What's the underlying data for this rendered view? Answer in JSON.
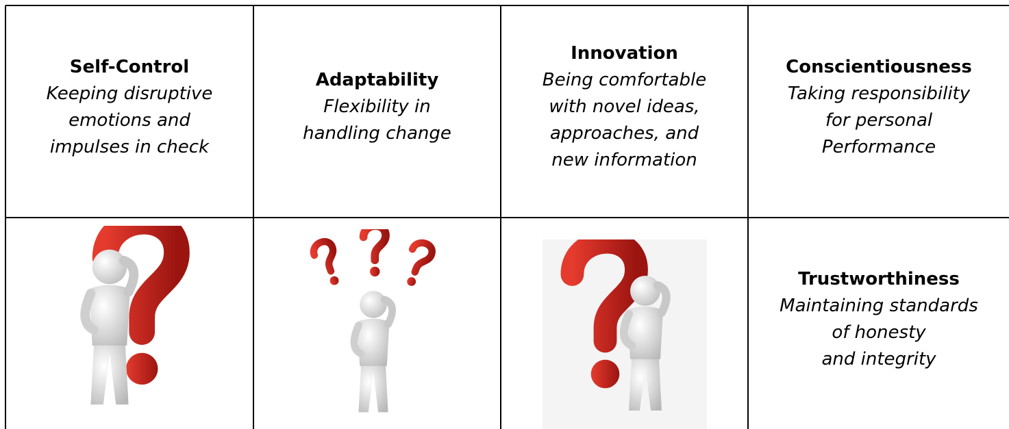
{
  "table": {
    "top_row": [
      {
        "title": "Self-Control",
        "description": [
          "Keeping disruptive",
          "emotions and",
          "impulses in check"
        ]
      },
      {
        "title": "Adaptability",
        "description": [
          "Flexibility in",
          "handling change"
        ]
      },
      {
        "title": "Innovation",
        "description": [
          "Being comfortable",
          "with novel ideas,",
          "approaches, and",
          "new information"
        ]
      },
      {
        "title": "Conscientiousness",
        "description": [
          "Taking responsibility",
          "for personal",
          "Performance"
        ]
      }
    ],
    "bottom_row_text": {
      "title": "Trustworthiness",
      "description": [
        "Maintaining standards",
        "of honesty",
        "and integrity"
      ]
    }
  }
}
